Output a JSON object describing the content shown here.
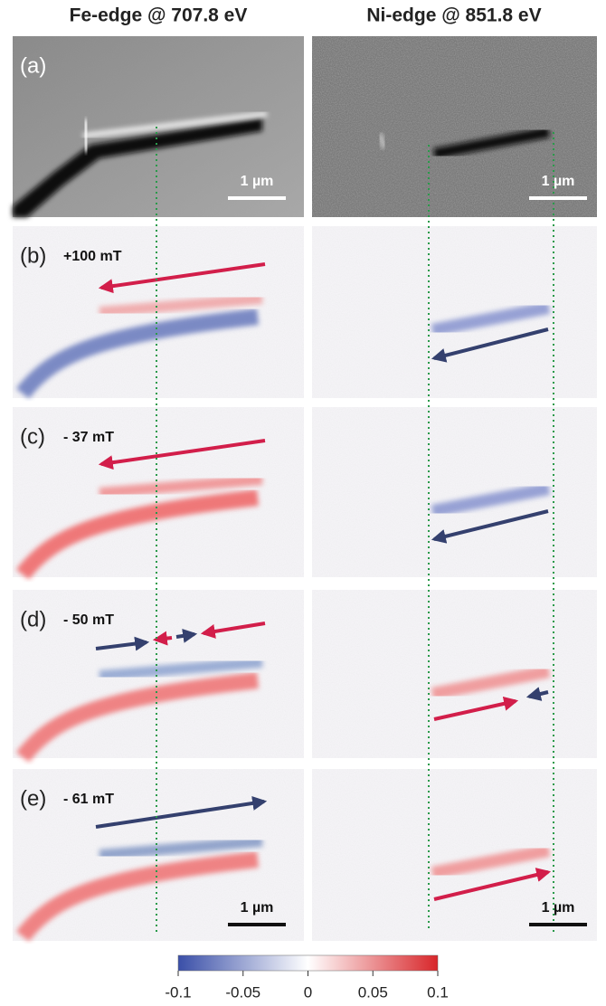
{
  "columns": [
    "Fe-edge @ 707.8 eV",
    "Ni-edge @ 851.8 eV"
  ],
  "panels": [
    {
      "label": "(a)"
    },
    {
      "label": "(b)",
      "field": "+100 mT"
    },
    {
      "label": "(c)",
      "field": "- 37 mT"
    },
    {
      "label": "(d)",
      "field": "- 50 mT"
    },
    {
      "label": "(e)",
      "field": "- 61 mT"
    }
  ],
  "scale_bar": "1 µm",
  "colorbar": {
    "range": [
      -0.1,
      0.1
    ],
    "ticks": [
      -0.1,
      -0.05,
      0,
      0.05,
      0.1
    ]
  }
}
